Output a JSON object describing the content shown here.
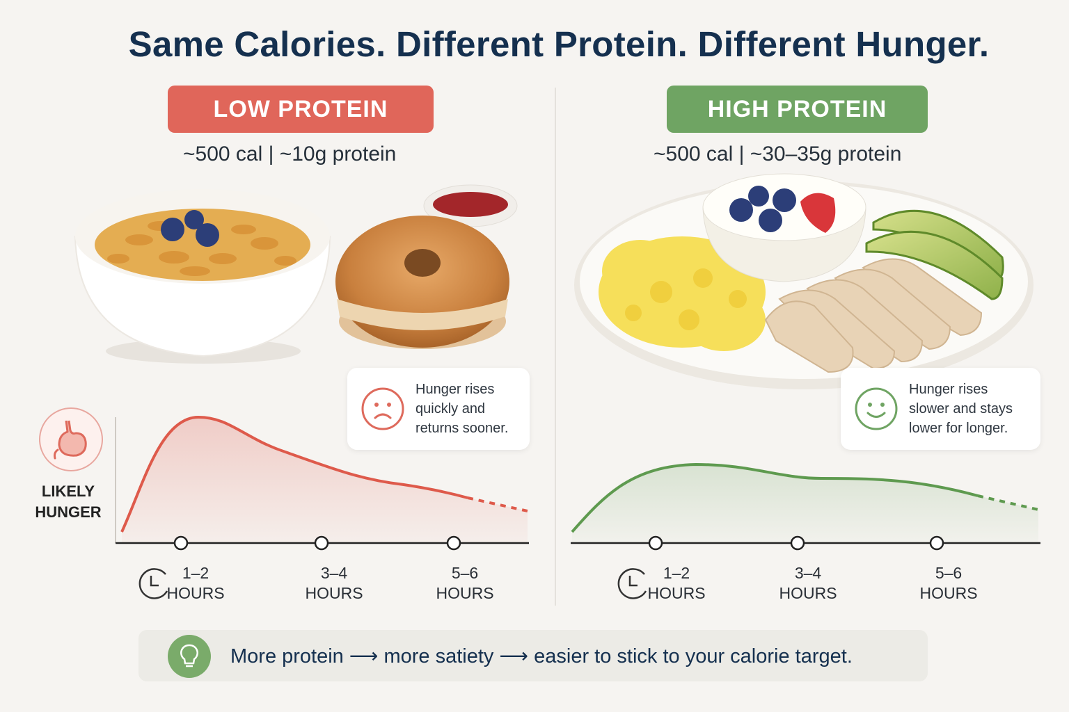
{
  "title": "Same Calories. Different Protein. Different Hunger.",
  "low": {
    "label": "LOW PROTEIN",
    "stats": "~500 cal  |  ~10g protein",
    "callout": [
      "Hunger rises",
      "quickly and",
      "returns sooner."
    ]
  },
  "high": {
    "label": "HIGH PROTEIN",
    "stats": "~500 cal  |  ~30–35g protein",
    "callout": [
      "Hunger rises",
      "slower and stays",
      "lower for longer."
    ]
  },
  "y_axis_label": [
    "LIKELY",
    "HUNGER"
  ],
  "time_labels": [
    {
      "top": "1–2",
      "bottom": "HOURS"
    },
    {
      "top": "3–4",
      "bottom": "HOURS"
    },
    {
      "top": "5–6",
      "bottom": "HOURS"
    }
  ],
  "footer": "More protein ⟶ more satiety ⟶ easier to stick to your calorie target.",
  "colors": {
    "low_accent": "#e0665a",
    "high_accent": "#6fa463",
    "title": "#15304f"
  },
  "icons": [
    "stomach-icon",
    "clock-icon",
    "sad-face-icon",
    "smile-face-icon",
    "lightbulb-icon"
  ]
}
